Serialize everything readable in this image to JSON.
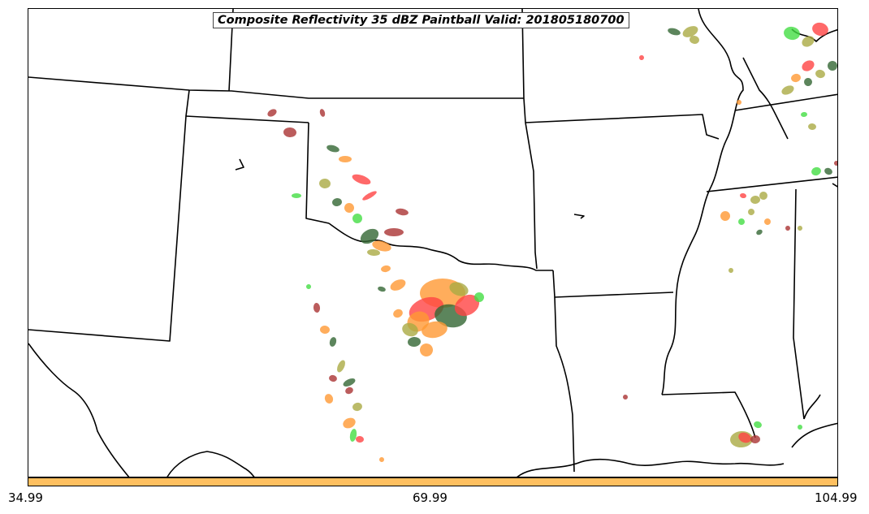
{
  "title": "Composite Reflectivity 35 dBZ Paintball Valid: 201805180700",
  "colorbar": {
    "color": "#ffc060",
    "tick_labels": [
      "34.99",
      "69.99",
      "104.99"
    ]
  },
  "colors": {
    "border": "#000000",
    "paint_red": "#ff4444",
    "paint_green": "#44dd44",
    "paint_orange": "#ff9933",
    "paint_darkgreen": "#336633",
    "paint_brown": "#aa3333",
    "paint_olive": "#aaaa44",
    "paint_darkgray": "#444444"
  }
}
